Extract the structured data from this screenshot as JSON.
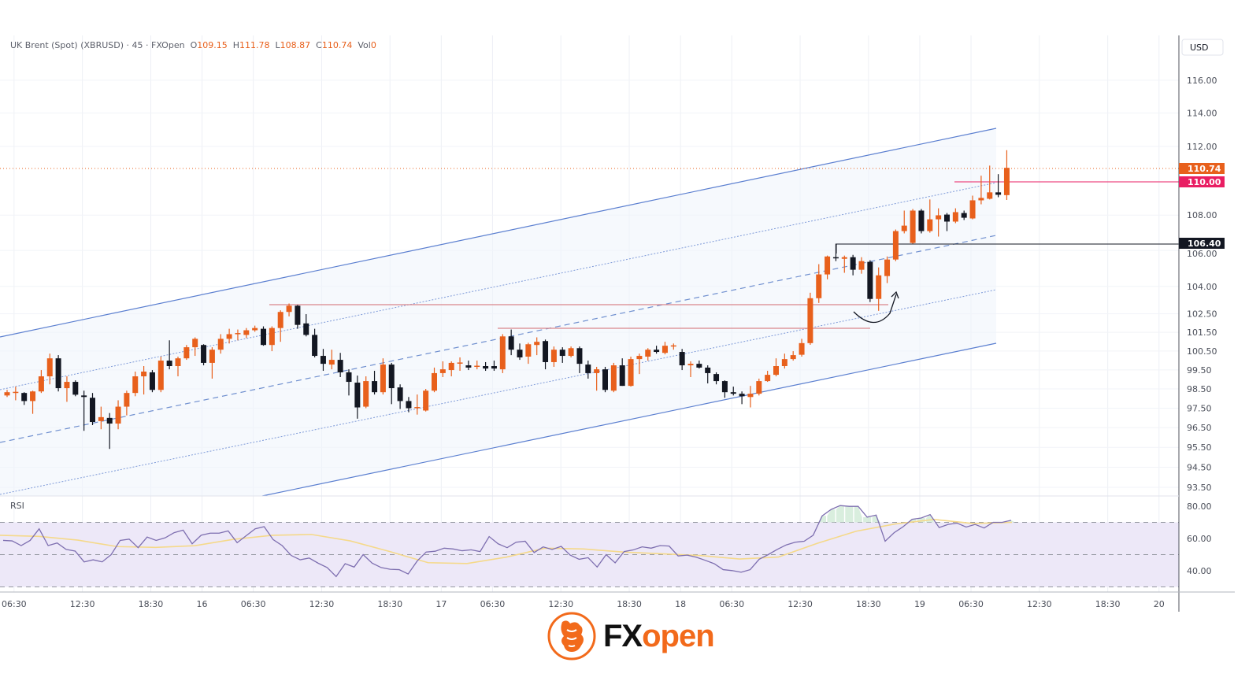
{
  "legend": {
    "symbol": "UK Brent (Spot) (XBRUSD) · 45 · FXOpen",
    "o_label": "O",
    "o": "109.15",
    "h_label": "H",
    "h": "111.78",
    "l_label": "L",
    "l": "108.87",
    "c_label": "C",
    "c": "110.74",
    "vol_label": "Vol",
    "vol": "0"
  },
  "logo": {
    "fx": "FX",
    "open": "open",
    "icon": "bull-head-icon"
  },
  "colors": {
    "up": "#e8601c",
    "down": "#131722",
    "channel": "#5b7fd0",
    "level_red": "#d9868c",
    "last_price": "#e8601c",
    "level_110": "#e91e63",
    "level_10640": "#131722",
    "rsi": "#7e6fb0",
    "rsi_ma": "#f5d98a",
    "rsi_band": "#ede8f8"
  },
  "chart_data": [
    {
      "type": "candlestick",
      "title": "UK Brent (Spot) (XBRUSD) · 45 · FXOpen",
      "currency_label": "USD",
      "y_scale": "log",
      "ylim": [
        93.0,
        117.0
      ],
      "grid": true,
      "y_ticks": [
        "116.00",
        "114.00",
        "112.00",
        "108.00",
        "106.00",
        "104.00",
        "102.50",
        "101.50",
        "100.50",
        "99.50",
        "98.50",
        "97.50",
        "96.50",
        "95.50",
        "94.50",
        "93.50"
      ],
      "x_ticks": [
        "06:30",
        "12:30",
        "18:30",
        "16",
        "06:30",
        "12:30",
        "18:30",
        "17",
        "06:30",
        "12:30",
        "18:30",
        "18",
        "06:30",
        "12:30",
        "18:30",
        "19",
        "06:30",
        "12:30",
        "18:30",
        "20"
      ],
      "price_labels": [
        {
          "value": "110.74",
          "kind": "last_price"
        },
        {
          "value": "110.00",
          "kind": "horizontal_line"
        },
        {
          "value": "106.40",
          "kind": "horizontal_line"
        }
      ],
      "horizontal_levels": [
        103.0,
        101.6,
        106.4,
        110.0,
        110.74
      ],
      "ohlc": [
        [
          98.16,
          98.45,
          98.08,
          98.33
        ],
        [
          98.33,
          98.62,
          97.91,
          98.35
        ],
        [
          98.29,
          98.33,
          97.67,
          97.87
        ],
        [
          97.87,
          98.41,
          97.21,
          98.37
        ],
        [
          98.37,
          99.49,
          98.29,
          99.16
        ],
        [
          99.16,
          100.36,
          98.74,
          100.11
        ],
        [
          100.11,
          100.28,
          98.37,
          98.54
        ],
        [
          98.54,
          99.16,
          97.83,
          98.87
        ],
        [
          98.87,
          98.95,
          98.12,
          98.2
        ],
        [
          98.16,
          98.41,
          96.34,
          98.08
        ],
        [
          98.04,
          98.29,
          96.63,
          96.79
        ],
        [
          96.84,
          97.58,
          96.42,
          97.04
        ],
        [
          97.0,
          97.25,
          95.42,
          96.71
        ],
        [
          96.71,
          97.91,
          96.42,
          97.58
        ],
        [
          97.58,
          98.41,
          97.13,
          98.29
        ],
        [
          98.29,
          99.41,
          98.12,
          99.16
        ],
        [
          99.16,
          99.7,
          98.21,
          99.41
        ],
        [
          99.37,
          99.49,
          98.33,
          98.45
        ],
        [
          98.45,
          100.2,
          98.33,
          99.99
        ],
        [
          99.99,
          101.07,
          99.53,
          99.7
        ],
        [
          99.7,
          100.2,
          99.16,
          100.11
        ],
        [
          100.11,
          100.82,
          100.03,
          100.7
        ],
        [
          100.7,
          101.23,
          100.24,
          101.15
        ],
        [
          100.82,
          100.86,
          99.74,
          99.87
        ],
        [
          99.87,
          100.7,
          99.04,
          100.57
        ],
        [
          100.57,
          101.4,
          100.36,
          101.15
        ],
        [
          101.15,
          101.69,
          100.9,
          101.4
        ],
        [
          101.44,
          101.65,
          101.07,
          101.46
        ],
        [
          101.36,
          101.73,
          101.19,
          101.61
        ],
        [
          101.61,
          101.86,
          101.53,
          101.73
        ],
        [
          101.69,
          101.82,
          100.78,
          100.82
        ],
        [
          100.82,
          101.82,
          100.49,
          101.73
        ],
        [
          101.73,
          102.69,
          100.99,
          102.6
        ],
        [
          102.6,
          103.06,
          102.36,
          102.94
        ],
        [
          102.94,
          102.98,
          101.69,
          101.9
        ],
        [
          101.98,
          102.48,
          101.28,
          101.36
        ],
        [
          101.36,
          101.69,
          100.16,
          100.24
        ],
        [
          100.24,
          100.61,
          99.45,
          99.82
        ],
        [
          99.78,
          100.57,
          99.53,
          100.03
        ],
        [
          100.03,
          100.4,
          99.12,
          99.37
        ],
        [
          99.37,
          99.53,
          98.16,
          98.87
        ],
        [
          98.83,
          99.2,
          96.96,
          97.54
        ],
        [
          97.58,
          99.16,
          97.5,
          98.91
        ],
        [
          98.91,
          99.45,
          98.21,
          98.33
        ],
        [
          98.33,
          100.11,
          98.21,
          99.78
        ],
        [
          99.78,
          99.87,
          97.71,
          98.54
        ],
        [
          98.58,
          98.74,
          97.46,
          97.87
        ],
        [
          97.87,
          98.08,
          97.29,
          97.5
        ],
        [
          97.54,
          98.21,
          97.17,
          97.56
        ],
        [
          97.38,
          98.5,
          97.33,
          98.41
        ],
        [
          98.41,
          99.62,
          98.33,
          99.33
        ],
        [
          99.33,
          99.95,
          99.12,
          99.53
        ],
        [
          99.49,
          99.95,
          99.16,
          99.87
        ],
        [
          99.87,
          100.16,
          99.45,
          99.89
        ],
        [
          99.74,
          99.99,
          99.49,
          99.62
        ],
        [
          99.7,
          99.99,
          99.53,
          99.72
        ],
        [
          99.7,
          99.91,
          99.45,
          99.57
        ],
        [
          99.7,
          99.99,
          99.45,
          99.57
        ],
        [
          99.53,
          101.4,
          99.33,
          101.28
        ],
        [
          101.28,
          101.65,
          100.28,
          100.57
        ],
        [
          100.57,
          100.9,
          100.03,
          100.16
        ],
        [
          100.2,
          100.94,
          99.82,
          100.86
        ],
        [
          100.82,
          101.23,
          100.28,
          100.99
        ],
        [
          101.03,
          101.11,
          99.53,
          99.91
        ],
        [
          99.91,
          100.74,
          99.66,
          100.57
        ],
        [
          100.57,
          100.7,
          99.87,
          100.24
        ],
        [
          100.24,
          100.74,
          100.16,
          100.65
        ],
        [
          100.65,
          100.74,
          99.33,
          99.82
        ],
        [
          99.78,
          99.99,
          99.04,
          99.33
        ],
        [
          99.33,
          99.66,
          98.41,
          99.53
        ],
        [
          99.53,
          99.66,
          98.33,
          98.45
        ],
        [
          98.41,
          99.87,
          98.33,
          99.74
        ],
        [
          99.74,
          100.11,
          98.66,
          98.66
        ],
        [
          98.66,
          100.2,
          98.62,
          100.07
        ],
        [
          100.07,
          100.36,
          99.28,
          100.24
        ],
        [
          100.2,
          100.65,
          99.99,
          100.57
        ],
        [
          100.57,
          100.78,
          100.36,
          100.45
        ],
        [
          100.4,
          100.99,
          100.32,
          100.78
        ],
        [
          100.78,
          100.9,
          100.57,
          100.8
        ],
        [
          100.45,
          100.61,
          99.49,
          99.74
        ],
        [
          99.74,
          99.95,
          99.12,
          99.82
        ],
        [
          99.82,
          99.99,
          99.57,
          99.62
        ],
        [
          99.62,
          99.74,
          98.79,
          99.33
        ],
        [
          99.28,
          99.37,
          98.74,
          98.91
        ],
        [
          98.91,
          98.95,
          98.04,
          98.33
        ],
        [
          98.33,
          98.62,
          98.16,
          98.25
        ],
        [
          98.25,
          98.37,
          97.71,
          98.12
        ],
        [
          98.08,
          98.66,
          97.54,
          98.25
        ],
        [
          98.25,
          99.04,
          98.16,
          98.91
        ],
        [
          98.91,
          99.45,
          98.87,
          99.24
        ],
        [
          99.24,
          100.11,
          99.16,
          99.7
        ],
        [
          99.7,
          100.36,
          99.57,
          100.07
        ],
        [
          100.07,
          100.49,
          99.99,
          100.28
        ],
        [
          100.3,
          101.15,
          100.2,
          100.92
        ],
        [
          100.92,
          103.65,
          100.83,
          103.35
        ],
        [
          103.35,
          105.23,
          103.09,
          104.66
        ],
        [
          104.66,
          105.71,
          104.39,
          105.66
        ],
        [
          105.62,
          106.38,
          105.4,
          105.58
        ],
        [
          105.53,
          105.71,
          104.75,
          105.62
        ],
        [
          105.62,
          105.75,
          104.61,
          104.92
        ],
        [
          104.92,
          105.62,
          104.7,
          105.4
        ],
        [
          105.36,
          105.45,
          103.14,
          103.31
        ],
        [
          103.31,
          105.05,
          102.66,
          104.61
        ],
        [
          104.57,
          105.66,
          104.18,
          105.49
        ],
        [
          105.49,
          107.18,
          105.4,
          107.09
        ],
        [
          107.09,
          108.26,
          106.96,
          107.4
        ],
        [
          106.42,
          108.35,
          106.38,
          108.26
        ],
        [
          108.26,
          108.35,
          106.96,
          107.09
        ],
        [
          107.09,
          108.9,
          107.0,
          107.76
        ],
        [
          107.76,
          108.39,
          106.78,
          107.99
        ],
        [
          108.03,
          108.12,
          107.09,
          107.63
        ],
        [
          107.63,
          108.39,
          107.54,
          108.17
        ],
        [
          108.12,
          108.26,
          107.72,
          107.85
        ],
        [
          107.81,
          109.12,
          107.76,
          108.85
        ],
        [
          108.85,
          110.28,
          108.62,
          108.99
        ],
        [
          108.94,
          110.87,
          108.9,
          109.31
        ],
        [
          109.31,
          110.37,
          109.03,
          109.17
        ],
        [
          109.15,
          111.78,
          108.87,
          110.74
        ]
      ]
    },
    {
      "type": "line",
      "title": "RSI",
      "ylim": [
        25,
        88
      ],
      "y_ticks": [
        "80.00",
        "60.00",
        "40.00"
      ],
      "bands": {
        "upper": 70,
        "middle": 50,
        "lower": 30
      },
      "series": [
        {
          "values": [
            58.8,
            58.5,
            55.6,
            58.8,
            66,
            55.6,
            57.2,
            53.2,
            52.2,
            45.5,
            46.8,
            45.5,
            50,
            58.8,
            59.6,
            54.3,
            60.9,
            58.8,
            60.4,
            63.6,
            65.2,
            56.7,
            62,
            63.3,
            63.3,
            64.7,
            57.4,
            61.7,
            66,
            67.3,
            59.3,
            55.6,
            49.5,
            46.8,
            47.9,
            44.7,
            42,
            36.4,
            44.4,
            42.3,
            50,
            44.7,
            42,
            40.9,
            40.7,
            38,
            46,
            51.6,
            52.1,
            54,
            53.5,
            52.4,
            53,
            51.9,
            61.2,
            56.7,
            54.3,
            57.7,
            58.3,
            51.3,
            54.8,
            53.2,
            55.1,
            49.7,
            47.1,
            48.1,
            42.3,
            50,
            44.9,
            51.9,
            52.9,
            54.8,
            54,
            55.6,
            55.3,
            49.2,
            49.7,
            48.4,
            46.5,
            44.4,
            40.7,
            40.1,
            39.1,
            40.7,
            47.1,
            50,
            53.2,
            56,
            57.7,
            58.3,
            62,
            74,
            78,
            80.4,
            79.9,
            79.9,
            73.2,
            74.5,
            58.3,
            63.6,
            67.3,
            71.9,
            72.7,
            74.8,
            66.8,
            68.7,
            69.5,
            67.1,
            68.7,
            66.5,
            70,
            70,
            71.3
          ]
        },
        {
          "values": [
            62,
            61.3,
            59,
            55,
            54.5,
            55.5,
            59.5,
            62,
            62.5,
            58.5,
            52,
            45,
            44.5,
            48.4,
            54,
            53.5,
            51.6,
            50.5,
            49.4,
            47.3,
            48.5,
            57,
            64.5,
            69,
            71.8,
            69.3,
            70
          ]
        }
      ]
    }
  ]
}
